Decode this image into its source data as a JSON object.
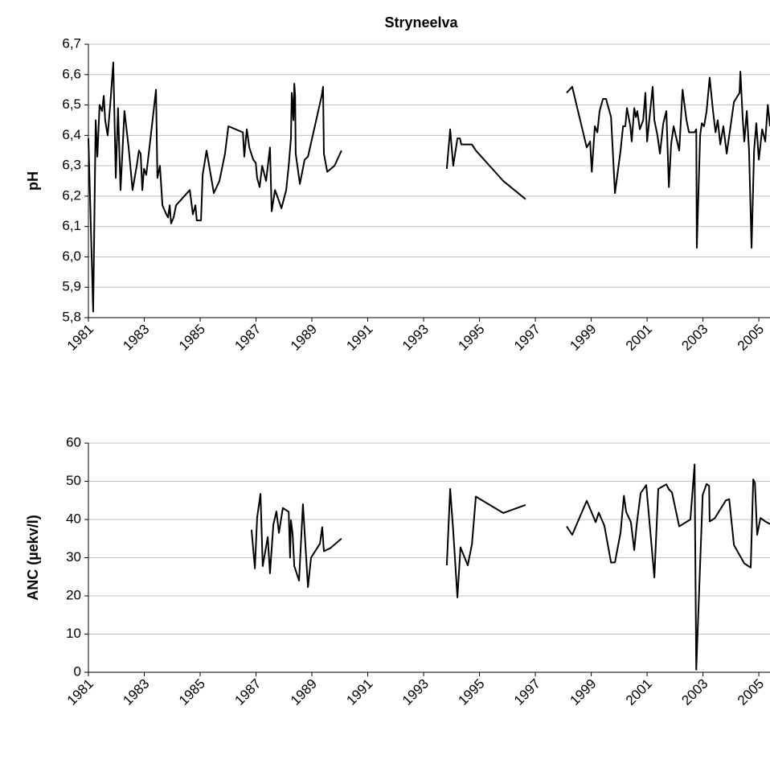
{
  "chart_data": [
    {
      "type": "line",
      "title": "Stryneelva",
      "y_label": "pH",
      "grid": true,
      "xlim": [
        1981,
        2005.4
      ],
      "xticks": [
        1981,
        1983,
        1985,
        1987,
        1989,
        1991,
        1993,
        1995,
        1997,
        1999,
        2001,
        2003,
        2005
      ],
      "ylim": [
        5.8,
        6.7
      ],
      "yticks": [
        {
          "value": 5.8,
          "label": "5,8"
        },
        {
          "value": 5.9,
          "label": "5,9"
        },
        {
          "value": 6.0,
          "label": "6,0"
        },
        {
          "value": 6.1,
          "label": "6,1"
        },
        {
          "value": 6.2,
          "label": "6,2"
        },
        {
          "value": 6.3,
          "label": "6,3"
        },
        {
          "value": 6.4,
          "label": "6,4"
        },
        {
          "value": 6.5,
          "label": "6,5"
        },
        {
          "value": 6.6,
          "label": "6,6"
        },
        {
          "value": 6.7,
          "label": "6,7"
        }
      ],
      "series": [
        {
          "color": "#000000",
          "x": [
            1981.0,
            1981.17,
            1981.26,
            1981.32,
            1981.4,
            1981.49,
            1981.55,
            1981.6,
            1981.69,
            1981.78,
            1981.89,
            1981.98,
            1982.06,
            1982.15,
            1982.29,
            1982.44,
            1982.58,
            1982.73,
            1982.81,
            1982.87,
            1982.93,
            1982.99,
            1983.07,
            1983.16,
            1983.42,
            1983.47,
            1983.56,
            1983.65,
            1983.79,
            1983.85,
            1983.91,
            1983.96,
            1984.05,
            1984.14,
            1984.63,
            1984.74,
            1984.83,
            1984.88,
            1985.03,
            1985.09,
            1985.23,
            1985.49,
            1985.69,
            1985.89,
            1986.01,
            1986.53,
            1986.58,
            1986.67,
            1986.76,
            1986.9,
            1986.99,
            1987.04,
            1987.13,
            1987.22,
            1987.36,
            1987.5,
            1987.56,
            1987.68,
            1987.76,
            1987.91,
            1988.08,
            1988.17,
            1988.25,
            1988.28,
            1988.34,
            1988.37,
            1988.4,
            1988.42,
            1988.57,
            1988.74,
            1988.86,
            1989.35,
            1989.4,
            1989.43,
            1989.55,
            1989.81,
            1990.06,
            null,
            1993.83,
            1993.95,
            1994.06,
            1994.21,
            1994.3,
            1994.35,
            1994.73,
            1994.87,
            1995.85,
            1996.65,
            null,
            1998.12,
            1998.32,
            1998.5,
            1998.84,
            1998.96,
            1999.02,
            1999.13,
            1999.22,
            1999.3,
            1999.42,
            1999.53,
            1999.71,
            1999.85,
            2000.05,
            2000.14,
            2000.22,
            2000.28,
            2000.4,
            2000.45,
            2000.54,
            2000.6,
            2000.65,
            2000.74,
            2000.86,
            2000.94,
            2001.0,
            2001.2,
            2001.26,
            2001.37,
            2001.46,
            2001.58,
            2001.69,
            2001.78,
            2001.86,
            2001.95,
            2002.15,
            2002.27,
            2002.41,
            2002.5,
            2002.7,
            2002.76,
            2002.78,
            2002.9,
            2002.96,
            2003.04,
            2003.13,
            2003.24,
            2003.36,
            2003.45,
            2003.53,
            2003.62,
            2003.73,
            2003.85,
            2004.11,
            2004.31,
            2004.34,
            2004.42,
            2004.48,
            2004.57,
            2004.65,
            2004.74,
            2004.83,
            2004.91,
            2005.0,
            2005.12,
            2005.23,
            2005.32,
            2005.4
          ],
          "values": [
            6.39,
            5.82,
            6.45,
            6.33,
            6.5,
            6.48,
            6.53,
            6.45,
            6.4,
            6.5,
            6.64,
            6.26,
            6.49,
            6.22,
            6.48,
            6.36,
            6.22,
            6.3,
            6.35,
            6.34,
            6.22,
            6.29,
            6.27,
            6.34,
            6.55,
            6.26,
            6.3,
            6.17,
            6.14,
            6.13,
            6.17,
            6.11,
            6.13,
            6.17,
            6.22,
            6.14,
            6.17,
            6.12,
            6.12,
            6.27,
            6.35,
            6.21,
            6.25,
            6.34,
            6.43,
            6.41,
            6.33,
            6.42,
            6.36,
            6.32,
            6.31,
            6.26,
            6.23,
            6.3,
            6.25,
            6.36,
            6.15,
            6.22,
            6.2,
            6.16,
            6.22,
            6.3,
            6.39,
            6.54,
            6.45,
            6.57,
            6.53,
            6.34,
            6.24,
            6.32,
            6.33,
            6.53,
            6.56,
            6.34,
            6.28,
            6.3,
            6.35,
            null,
            6.29,
            6.42,
            6.3,
            6.39,
            6.39,
            6.37,
            6.37,
            6.35,
            6.25,
            6.19,
            null,
            6.54,
            6.56,
            6.49,
            6.36,
            6.38,
            6.28,
            6.43,
            6.41,
            6.48,
            6.52,
            6.52,
            6.46,
            6.21,
            6.35,
            6.43,
            6.43,
            6.49,
            6.43,
            6.38,
            6.49,
            6.46,
            6.48,
            6.42,
            6.45,
            6.54,
            6.38,
            6.56,
            6.45,
            6.4,
            6.34,
            6.44,
            6.48,
            6.23,
            6.37,
            6.43,
            6.35,
            6.55,
            6.45,
            6.41,
            6.41,
            6.42,
            6.03,
            6.4,
            6.44,
            6.43,
            6.48,
            6.59,
            6.48,
            6.41,
            6.45,
            6.37,
            6.43,
            6.34,
            6.51,
            6.54,
            6.61,
            6.46,
            6.38,
            6.48,
            6.35,
            6.03,
            6.35,
            6.44,
            6.32,
            6.42,
            6.38,
            6.5,
            6.43
          ]
        }
      ]
    },
    {
      "type": "line",
      "y_label": "ANC (µekv/l)",
      "grid": true,
      "xlim": [
        1981,
        2005.4
      ],
      "xticks": [
        1981,
        1983,
        1985,
        1987,
        1989,
        1991,
        1993,
        1995,
        1997,
        1999,
        2001,
        2003,
        2005
      ],
      "ylim": [
        0,
        60
      ],
      "yticks": [
        0,
        10,
        20,
        30,
        40,
        50,
        60
      ],
      "series": [
        {
          "color": "#000000",
          "x": [
            1986.84,
            1986.96,
            1987.04,
            1987.16,
            1987.24,
            1987.42,
            1987.5,
            1987.62,
            1987.73,
            1987.82,
            1987.96,
            1988.17,
            1988.22,
            1988.25,
            1988.31,
            1988.37,
            1988.54,
            1988.68,
            1988.86,
            1988.97,
            1989.29,
            1989.37,
            1989.43,
            1989.66,
            1990.06,
            null,
            1993.83,
            1993.95,
            1994.06,
            1994.21,
            1994.32,
            1994.58,
            1994.73,
            1994.87,
            1995.85,
            1996.65,
            null,
            1998.12,
            1998.32,
            1998.84,
            1999.16,
            1999.27,
            1999.47,
            1999.71,
            1999.85,
            2000.05,
            2000.17,
            2000.25,
            2000.42,
            2000.54,
            2000.63,
            2000.77,
            2000.97,
            2001.26,
            2001.4,
            2001.69,
            2001.78,
            2001.89,
            2002.15,
            2002.55,
            2002.7,
            2002.76,
            2002.99,
            2003.13,
            2003.22,
            2003.24,
            2003.42,
            2003.82,
            2003.94,
            2004.11,
            2004.48,
            2004.71,
            2004.8,
            2004.86,
            2004.94,
            2005.06,
            2005.23,
            2005.4
          ],
          "values": [
            37.3,
            27.2,
            40.5,
            46.7,
            27.8,
            35.4,
            25.9,
            38.6,
            42.1,
            36.5,
            43,
            42,
            30,
            39.8,
            36.3,
            27.8,
            24,
            44,
            22.3,
            30,
            33.7,
            38,
            31.7,
            32.5,
            35,
            null,
            28,
            48,
            37,
            19.6,
            32.7,
            28,
            33.5,
            46,
            41.7,
            43.8,
            null,
            38.2,
            36,
            44.9,
            39.3,
            41.8,
            38.4,
            28.7,
            28.8,
            36.6,
            46.2,
            42,
            39.3,
            32,
            38.8,
            46.9,
            49,
            24.8,
            48,
            49.2,
            47.9,
            47.1,
            38.2,
            40,
            54.4,
            0.7,
            46.4,
            49.3,
            48.8,
            39.5,
            40.3,
            45,
            45.3,
            33.3,
            28.5,
            27.4,
            50.5,
            49.6,
            36,
            40.4,
            39.5,
            38.8
          ]
        }
      ]
    }
  ]
}
